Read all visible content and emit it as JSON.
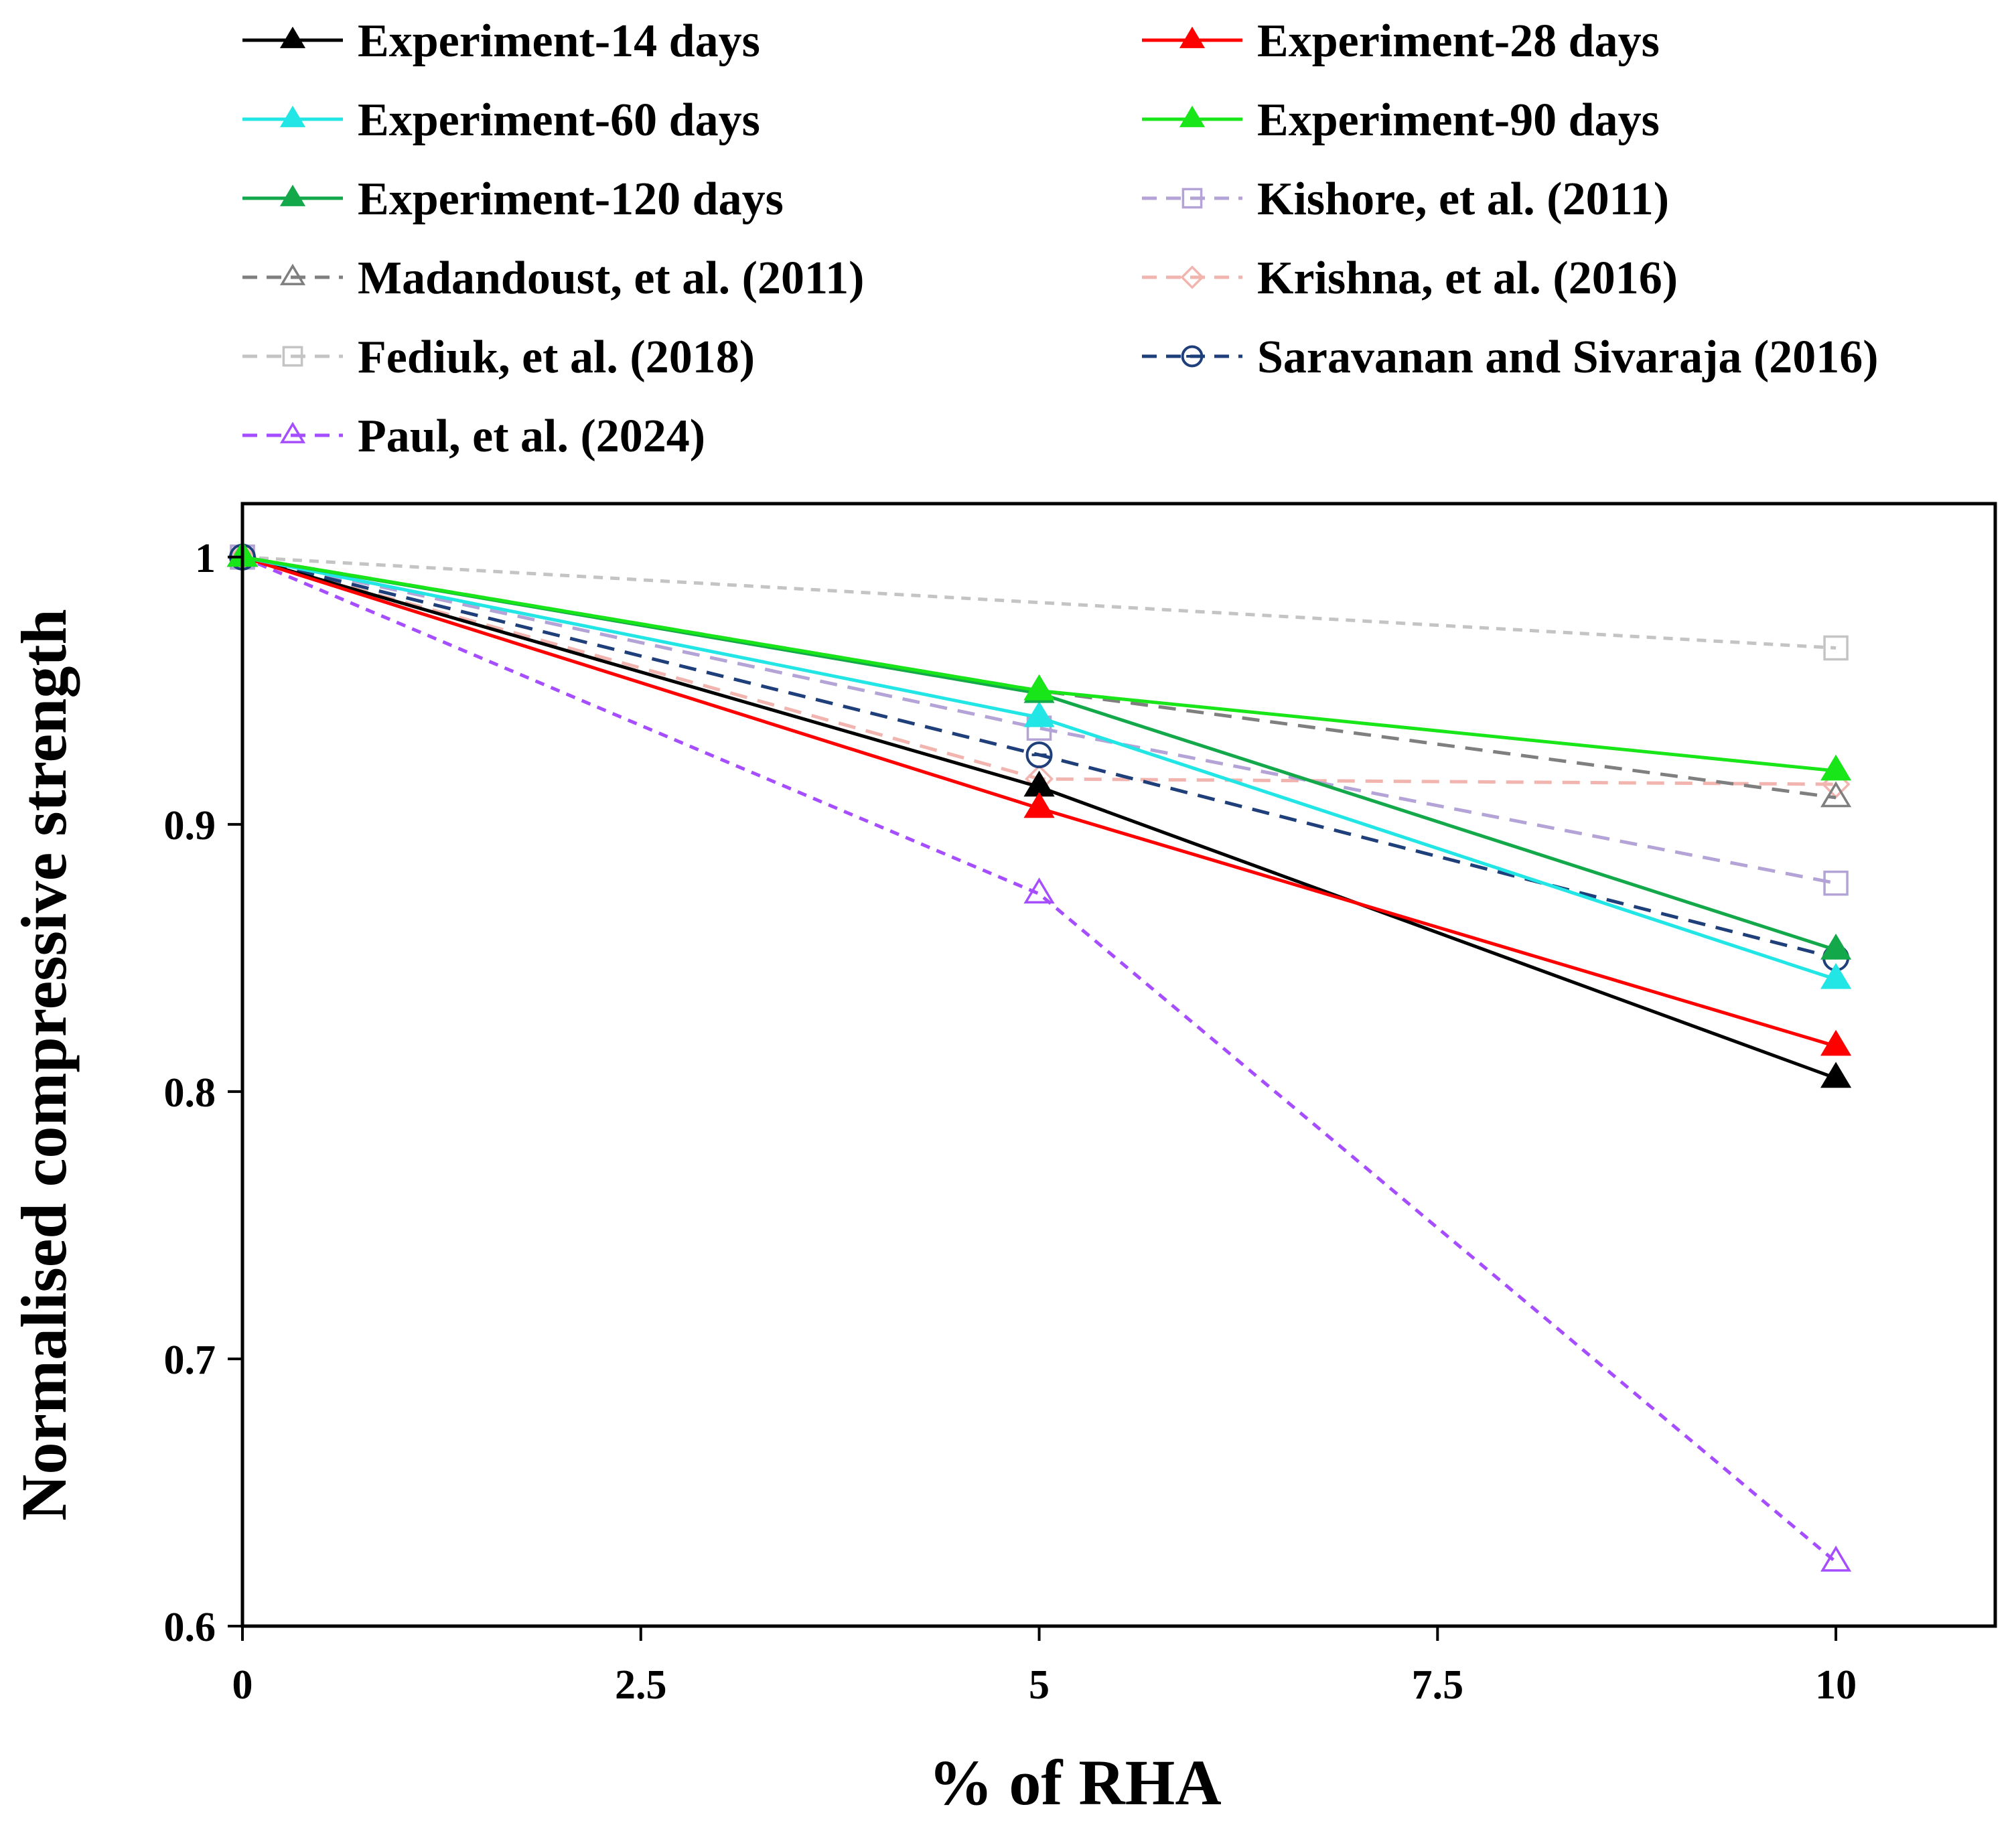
{
  "chart_data": {
    "type": "line",
    "xlabel": "% of RHA",
    "ylabel": "Normalised compressive strength",
    "xlim": [
      0,
      11
    ],
    "ylim": [
      0.6,
      1.02
    ],
    "grid": false,
    "legend_position": "top (above plot, two columns)",
    "x_ticks": [
      {
        "value": 0,
        "label": "0"
      },
      {
        "value": 2.5,
        "label": "2.5"
      },
      {
        "value": 5,
        "label": "5"
      },
      {
        "value": 7.5,
        "label": "7.5"
      },
      {
        "value": 10,
        "label": "10"
      }
    ],
    "y_ticks": [
      {
        "value": 0.6,
        "label": "0.6"
      },
      {
        "value": 0.7,
        "label": "0.7"
      },
      {
        "value": 0.8,
        "label": "0.8"
      },
      {
        "value": 0.9,
        "label": "0.9"
      },
      {
        "value": 1.0,
        "label": "1"
      }
    ],
    "series": [
      {
        "id": "exp14",
        "name": "Experiment-14 days",
        "color": "#000000",
        "style": "solid",
        "marker": "triangle-filled",
        "x": [
          0,
          5,
          10
        ],
        "y": [
          1.0,
          0.914,
          0.805
        ]
      },
      {
        "id": "exp28",
        "name": "Experiment-28 days",
        "color": "#ff0000",
        "style": "solid",
        "marker": "triangle-filled",
        "x": [
          0,
          5,
          10
        ],
        "y": [
          1.0,
          0.906,
          0.817
        ]
      },
      {
        "id": "exp60",
        "name": "Experiment-60 days",
        "color": "#22e6e6",
        "style": "solid",
        "marker": "triangle-filled",
        "x": [
          0,
          5,
          10
        ],
        "y": [
          1.0,
          0.94,
          0.842
        ]
      },
      {
        "id": "exp90",
        "name": "Experiment-90 days",
        "color": "#19e619",
        "style": "solid",
        "marker": "triangle-filled",
        "x": [
          0,
          5,
          10
        ],
        "y": [
          1.0,
          0.95,
          0.92
        ]
      },
      {
        "id": "exp120",
        "name": "Experiment-120 days",
        "color": "#13a84a",
        "style": "solid",
        "marker": "triangle-filled",
        "x": [
          0,
          5,
          10
        ],
        "y": [
          1.0,
          0.949,
          0.853
        ]
      },
      {
        "id": "kishore",
        "name": "Kishore, et al. (2011)",
        "color": "#b3a3d6",
        "style": "dashed",
        "marker": "square-open",
        "x": [
          0,
          5,
          10
        ],
        "y": [
          1.0,
          0.936,
          0.878
        ]
      },
      {
        "id": "madandoust",
        "name": "Madandoust, et al. (2011)",
        "color": "#7f7f7f",
        "style": "dashed",
        "marker": "triangle-open",
        "x": [
          0,
          5,
          10
        ],
        "y": [
          1.0,
          0.95,
          0.91
        ]
      },
      {
        "id": "krishna",
        "name": "Krishna, et al. (2016)",
        "color": "#f2b4ae",
        "style": "dashed",
        "marker": "diamond-open",
        "x": [
          0,
          5,
          10
        ],
        "y": [
          1.0,
          0.917,
          0.915
        ]
      },
      {
        "id": "fediuk",
        "name": "Fediuk, et al. (2018)",
        "color": "#c4c4c4",
        "style": "dashed",
        "marker": "square-open",
        "x": [
          0,
          10
        ],
        "y": [
          1.0,
          0.966
        ]
      },
      {
        "id": "saravanan",
        "name": "Saravanan and Sivaraja (2016)",
        "color": "#1f3f7a",
        "style": "dashed",
        "marker": "circle-open-dash",
        "x": [
          0,
          5,
          10
        ],
        "y": [
          1.0,
          0.926,
          0.85
        ]
      },
      {
        "id": "paul",
        "name": "Paul, et al. (2024)",
        "color": "#a64dff",
        "style": "dashed",
        "marker": "triangle-open",
        "x": [
          0,
          5,
          10
        ],
        "y": [
          1.0,
          0.874,
          0.624
        ]
      }
    ]
  }
}
